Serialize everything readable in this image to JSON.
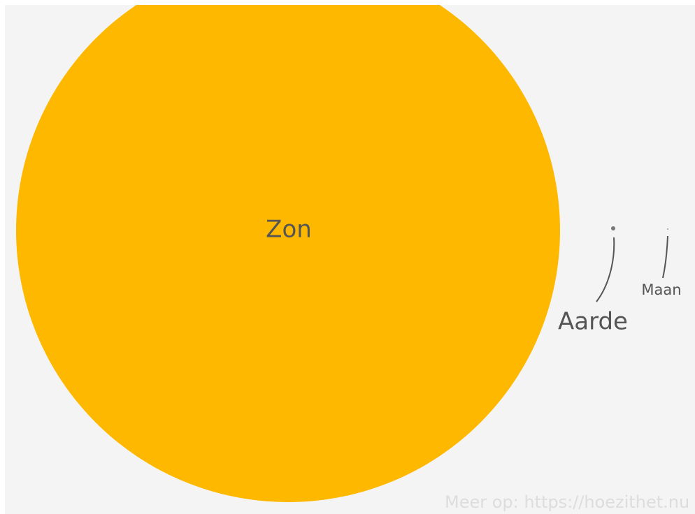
{
  "nodes": [
    {
      "label": "Zon"
    },
    {
      "label": "Aarde"
    },
    {
      "label": "Maan"
    }
  ],
  "footer": "Meer op: https://hoezithet.nu"
}
